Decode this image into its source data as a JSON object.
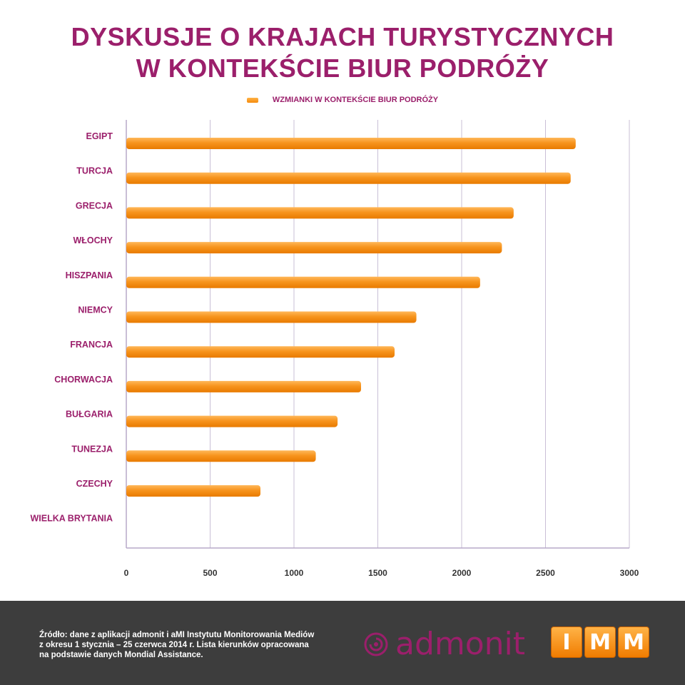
{
  "title": {
    "line1": "DYSKUSJE O KRAJACH TURYSTYCZNYCH",
    "line2": "W KONTEKŚCIE BIUR PODRÓŻY"
  },
  "chart_data": {
    "type": "bar",
    "orientation": "horizontal",
    "categories": [
      "EGIPT",
      "TURCJA",
      "GRECJA",
      "WŁOCHY",
      "HISZPANIA",
      "NIEMCY",
      "FRANCJA",
      "CHORWACJA",
      "BUŁGARIA",
      "TUNEZJA",
      "CZECHY",
      "WIELKA BRYTANIA"
    ],
    "series": [
      {
        "name": "WZMIANKI  W KONTEKŚCIE BIUR PODRÓŻY",
        "values": [
          2680,
          2650,
          2310,
          2240,
          2110,
          1730,
          1600,
          1400,
          1260,
          1130,
          800,
          0
        ],
        "color": "#f7941d"
      }
    ],
    "xlim": [
      0,
      3000
    ],
    "xticks": [
      0,
      500,
      1000,
      1500,
      2000,
      2500,
      3000
    ],
    "grid": true,
    "legend_position": "top-center"
  },
  "colors": {
    "title": "#9b1f6b",
    "bar": "#f7941d",
    "gridline": "#c9bfd6",
    "footer_bg": "#3d3d3d"
  },
  "footer": {
    "source_lines": [
      "Źródło: dane z aplikacji admonit i aMI Instytutu Monitorowania Mediów",
      "z okresu 1 stycznia – 25 czerwca 2014 r.  Lista kierunków opracowana",
      "na podstawie danych Mondial Assistance."
    ],
    "admonit_logo": "admonit",
    "imm_logo": [
      "I",
      "M",
      "M"
    ]
  }
}
